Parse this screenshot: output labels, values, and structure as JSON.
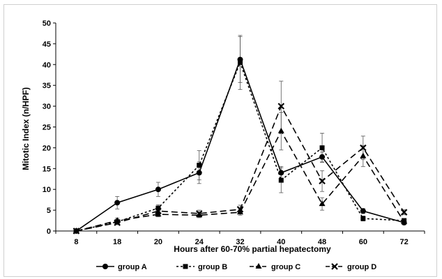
{
  "chart_data": {
    "type": "line",
    "title": "",
    "xlabel": "Hours  after 60-70% partial hepatectomy",
    "ylabel": "Mitotic Index (n/HPF)",
    "categories": [
      "8",
      "18",
      "20",
      "24",
      "32",
      "40",
      "48",
      "60",
      "72"
    ],
    "yticks": [
      0,
      5,
      10,
      15,
      20,
      25,
      30,
      35,
      40,
      45,
      50
    ],
    "ylim": [
      0,
      50
    ],
    "grid": false,
    "legend_position": "bottom",
    "series": [
      {
        "name": "group A",
        "marker": "circle",
        "dash": "solid",
        "color": "#000000",
        "values": [
          0,
          6.8,
          10,
          14,
          41.2,
          14,
          17.8,
          4.8,
          2
        ],
        "errors": [
          0,
          1.5,
          1.7,
          2.6,
          5.5,
          1.5,
          1.2,
          0.6,
          0.5
        ]
      },
      {
        "name": "group B",
        "marker": "square",
        "dash": "short",
        "color": "#000000",
        "values": [
          0,
          2.2,
          5.5,
          15.8,
          40.5,
          12.2,
          20,
          3,
          2.5
        ],
        "errors": [
          0,
          0.6,
          0.8,
          3.5,
          6.5,
          3,
          3.5,
          0.6,
          0.4
        ]
      },
      {
        "name": "group C",
        "marker": "triangle",
        "dash": "long",
        "color": "#000000",
        "values": [
          0,
          2.5,
          4,
          3.8,
          4.5,
          24,
          6.5,
          18,
          2.2
        ],
        "errors": [
          0,
          0.6,
          0.6,
          0.6,
          0.7,
          4.5,
          1.5,
          2.5,
          0.4
        ]
      },
      {
        "name": "group D",
        "marker": "x-square",
        "dash": "long",
        "color": "#000000",
        "values": [
          0,
          2,
          4.8,
          4.2,
          5.2,
          30,
          12,
          20,
          4.5
        ],
        "errors": [
          0,
          0.5,
          0.7,
          0.8,
          1,
          6,
          2.5,
          2.8,
          0.6
        ]
      }
    ]
  }
}
